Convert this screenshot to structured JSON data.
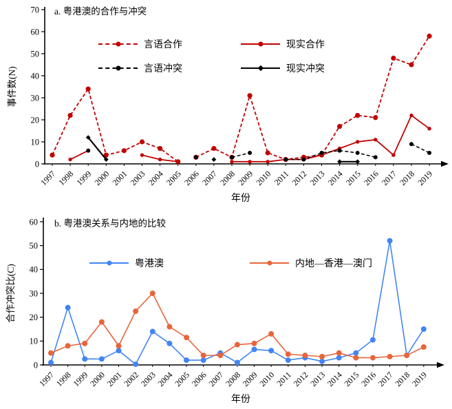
{
  "figure": {
    "background": "#ffffff",
    "axis_color": "#000000"
  },
  "chart_data": [
    {
      "id": "a",
      "type": "line",
      "title": "a. 粤港澳的合作与冲突",
      "xlabel": "年份",
      "ylabel": "事件数(N)",
      "ylim": [
        0,
        70
      ],
      "ytick_step": 10,
      "legend_position": "upper center, two columns",
      "grid": false,
      "categories": [
        "1997",
        "1998",
        "1999",
        "2000",
        "2001",
        "2003",
        "2004",
        "2005",
        "2006",
        "2007",
        "2008",
        "2009",
        "2010",
        "2011",
        "2012",
        "2013",
        "2014",
        "2015",
        "2016",
        "2017",
        "2018",
        "2019"
      ],
      "series": [
        {
          "name": "言语合作",
          "color": "#c00000",
          "line": "dashed",
          "marker": "circle",
          "breaks_after": [
            "2005"
          ],
          "values": [
            4,
            22,
            34,
            4,
            6,
            10,
            7,
            1,
            3,
            7,
            3,
            31,
            5,
            2,
            3,
            4,
            17,
            22,
            21,
            48,
            45,
            58
          ]
        },
        {
          "name": "现实合作",
          "color": "#c00000",
          "line": "solid",
          "marker": "circle",
          "values": [
            null,
            2,
            6,
            null,
            null,
            4,
            2,
            1,
            null,
            null,
            1,
            1,
            1,
            2,
            2,
            4,
            7,
            10,
            11,
            4,
            22,
            16
          ]
        },
        {
          "name": "言语冲突",
          "color": "#000000",
          "line": "dashed",
          "marker": "circle",
          "values": [
            null,
            null,
            6,
            null,
            null,
            null,
            null,
            null,
            3,
            null,
            3,
            5,
            null,
            2,
            2,
            5,
            6,
            5,
            3,
            null,
            9,
            5
          ]
        },
        {
          "name": "现实冲突",
          "color": "#000000",
          "line": "solid",
          "marker": "diamond",
          "values": [
            null,
            null,
            12,
            2,
            null,
            null,
            null,
            null,
            null,
            2,
            null,
            null,
            null,
            null,
            null,
            null,
            1,
            1,
            null,
            null,
            null,
            null
          ]
        }
      ]
    },
    {
      "id": "b",
      "type": "line",
      "title": "b. 粤港澳关系与内地的比较",
      "xlabel": "年份",
      "ylabel": "合作冲突比(C)",
      "ylim": [
        0,
        60
      ],
      "ytick_step": 10,
      "legend_position": "upper center, two columns",
      "grid": false,
      "categories": [
        "1997",
        "1998",
        "1999",
        "2000",
        "2001",
        "2002",
        "2003",
        "2004",
        "2005",
        "2006",
        "2007",
        "2008",
        "2009",
        "2010",
        "2011",
        "2012",
        "2013",
        "2014",
        "2015",
        "2016",
        "2017",
        "2018",
        "2019"
      ],
      "series": [
        {
          "name": "粤港澳",
          "color": "#4285f4",
          "line": "solid",
          "marker": "circle",
          "values": [
            1,
            24,
            2.5,
            2.5,
            6,
            0.3,
            14,
            9,
            2,
            2,
            5,
            1,
            6.5,
            6,
            2,
            3,
            1.5,
            3,
            5,
            10.5,
            52,
            4,
            15
          ]
        },
        {
          "name": "内地—香港—澳门",
          "color": "#e8653b",
          "line": "solid",
          "marker": "circle",
          "values": [
            5,
            8,
            9,
            18,
            8,
            22.5,
            30,
            16,
            11.5,
            4,
            4,
            8.5,
            9,
            13,
            4.5,
            4,
            3.5,
            5,
            3,
            3,
            3.5,
            4,
            7.5
          ]
        }
      ]
    }
  ]
}
